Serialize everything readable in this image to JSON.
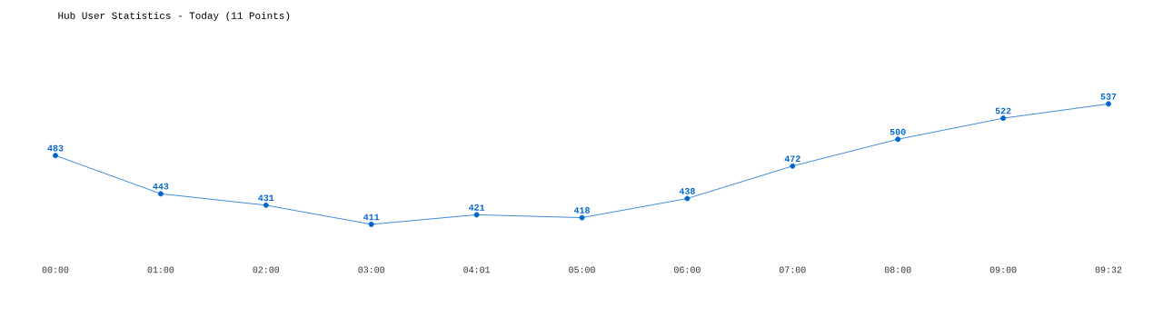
{
  "chart_data": {
    "type": "line",
    "title": "Hub User Statistics - Today (11 Points)",
    "categories": [
      "00:00",
      "01:00",
      "02:00",
      "03:00",
      "04:01",
      "05:00",
      "06:00",
      "07:00",
      "08:00",
      "09:00",
      "09:32"
    ],
    "series": [
      {
        "color": "#0066cc",
        "values": [
          483,
          443,
          431,
          411,
          421,
          418,
          438,
          472,
          500,
          522,
          537
        ]
      }
    ],
    "data_labels": true,
    "marker": "circle",
    "line_style": "solid",
    "grid": false,
    "tick_labels": "x"
  }
}
